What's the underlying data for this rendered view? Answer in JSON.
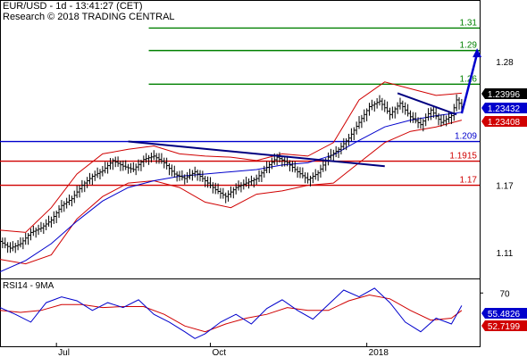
{
  "chart_data": {
    "type": "candlestick",
    "title": "EUR/USD - 1d - 13:41:27 (CET)",
    "subtitle": "Research © 2018 TRADING CENTRAL",
    "price_axis": {
      "ticks": [
        "1.28",
        "1.17",
        "1.11"
      ],
      "ylim": [
        1.087,
        1.335
      ]
    },
    "x_axis": {
      "labels": [
        "Jul",
        "Oct",
        "2018"
      ]
    },
    "horizontal_levels": [
      {
        "label": "1.31",
        "value": 1.31,
        "color": "#008000"
      },
      {
        "label": "1.29",
        "value": 1.29,
        "color": "#008000"
      },
      {
        "label": "1.26",
        "value": 1.26,
        "color": "#008000"
      },
      {
        "label": "1.209",
        "value": 1.209,
        "color": "#0000cc"
      },
      {
        "label": "1.1915",
        "value": 1.1915,
        "color": "#d00000"
      },
      {
        "label": "1.17",
        "value": 1.17,
        "color": "#d00000"
      }
    ],
    "price_tags": [
      {
        "label": "1.23996",
        "value": 1.23996,
        "bg": "#000000",
        "fg": "#ffffff"
      },
      {
        "label": "1.23432",
        "value": 1.23432,
        "bg": "#0000cc",
        "fg": "#ffffff"
      },
      {
        "label": "1.23408",
        "value": 1.23408,
        "bg": "#d00000",
        "fg": "#ffffff"
      }
    ],
    "price_path": [
      [
        0,
        1.12
      ],
      [
        4,
        1.114
      ],
      [
        8,
        1.118
      ],
      [
        12,
        1.128
      ],
      [
        16,
        1.132
      ],
      [
        20,
        1.139
      ],
      [
        24,
        1.152
      ],
      [
        28,
        1.158
      ],
      [
        32,
        1.17
      ],
      [
        36,
        1.178
      ],
      [
        40,
        1.183
      ],
      [
        44,
        1.192
      ],
      [
        48,
        1.187
      ],
      [
        52,
        1.184
      ],
      [
        56,
        1.193
      ],
      [
        60,
        1.196
      ],
      [
        64,
        1.19
      ],
      [
        68,
        1.18
      ],
      [
        72,
        1.176
      ],
      [
        76,
        1.182
      ],
      [
        80,
        1.174
      ],
      [
        84,
        1.166
      ],
      [
        88,
        1.16
      ],
      [
        92,
        1.168
      ],
      [
        96,
        1.172
      ],
      [
        100,
        1.176
      ],
      [
        104,
        1.186
      ],
      [
        108,
        1.195
      ],
      [
        112,
        1.19
      ],
      [
        116,
        1.182
      ],
      [
        120,
        1.175
      ],
      [
        124,
        1.181
      ],
      [
        128,
        1.195
      ],
      [
        132,
        1.202
      ],
      [
        136,
        1.212
      ],
      [
        140,
        1.226
      ],
      [
        144,
        1.24
      ],
      [
        148,
        1.245
      ],
      [
        152,
        1.233
      ],
      [
        156,
        1.243
      ],
      [
        160,
        1.231
      ],
      [
        164,
        1.224
      ],
      [
        168,
        1.237
      ],
      [
        172,
        1.226
      ],
      [
        176,
        1.232
      ],
      [
        178,
        1.246
      ],
      [
        180,
        1.24
      ]
    ],
    "upper_band": [
      [
        0,
        1.13
      ],
      [
        10,
        1.128
      ],
      [
        20,
        1.15
      ],
      [
        30,
        1.18
      ],
      [
        40,
        1.198
      ],
      [
        50,
        1.202
      ],
      [
        60,
        1.205
      ],
      [
        70,
        1.198
      ],
      [
        80,
        1.196
      ],
      [
        90,
        1.195
      ],
      [
        100,
        1.192
      ],
      [
        110,
        1.198
      ],
      [
        120,
        1.196
      ],
      [
        130,
        1.208
      ],
      [
        140,
        1.246
      ],
      [
        150,
        1.262
      ],
      [
        160,
        1.256
      ],
      [
        170,
        1.25
      ],
      [
        180,
        1.252
      ]
    ],
    "lower_band": [
      [
        0,
        1.104
      ],
      [
        10,
        1.1
      ],
      [
        20,
        1.108
      ],
      [
        30,
        1.14
      ],
      [
        40,
        1.16
      ],
      [
        50,
        1.172
      ],
      [
        60,
        1.174
      ],
      [
        70,
        1.168
      ],
      [
        80,
        1.155
      ],
      [
        90,
        1.15
      ],
      [
        100,
        1.162
      ],
      [
        110,
        1.165
      ],
      [
        120,
        1.17
      ],
      [
        130,
        1.172
      ],
      [
        140,
        1.19
      ],
      [
        150,
        1.208
      ],
      [
        160,
        1.218
      ],
      [
        170,
        1.222
      ],
      [
        180,
        1.228
      ]
    ],
    "moving_average": [
      [
        0,
        1.093
      ],
      [
        10,
        1.103
      ],
      [
        20,
        1.118
      ],
      [
        30,
        1.138
      ],
      [
        40,
        1.156
      ],
      [
        50,
        1.168
      ],
      [
        60,
        1.174
      ],
      [
        70,
        1.178
      ],
      [
        80,
        1.18
      ],
      [
        90,
        1.182
      ],
      [
        100,
        1.184
      ],
      [
        110,
        1.188
      ],
      [
        120,
        1.19
      ],
      [
        130,
        1.197
      ],
      [
        140,
        1.21
      ],
      [
        150,
        1.222
      ],
      [
        160,
        1.228
      ],
      [
        170,
        1.232
      ],
      [
        180,
        1.235
      ]
    ],
    "trendlines": [
      {
        "from": [
          50,
          1.209
        ],
        "to": [
          150,
          1.187
        ],
        "color": "#000080"
      },
      {
        "from": [
          155,
          1.252
        ],
        "to": [
          178,
          1.233
        ],
        "color": "#000080"
      }
    ],
    "arrow": {
      "from": [
        180,
        1.234
      ],
      "to": [
        186,
        1.292
      ],
      "color": "#0000cc"
    },
    "rsi": {
      "label": "RSI14 - 9MA",
      "ticks": [
        "70"
      ],
      "ylim": [
        15,
        85
      ],
      "tags": [
        {
          "label": "55.4826",
          "value": 55.4826,
          "bg": "#0000cc",
          "fg": "#ffffff"
        },
        {
          "label": "52.7199",
          "value": 52.7199,
          "bg": "#d00000",
          "fg": "#ffffff"
        }
      ],
      "rsi_line": [
        [
          0,
          55
        ],
        [
          6,
          48
        ],
        [
          12,
          40
        ],
        [
          18,
          60
        ],
        [
          24,
          66
        ],
        [
          30,
          62
        ],
        [
          36,
          52
        ],
        [
          42,
          60
        ],
        [
          48,
          55
        ],
        [
          54,
          63
        ],
        [
          60,
          48
        ],
        [
          66,
          40
        ],
        [
          72,
          30
        ],
        [
          76,
          23
        ],
        [
          80,
          28
        ],
        [
          86,
          40
        ],
        [
          92,
          48
        ],
        [
          98,
          38
        ],
        [
          104,
          54
        ],
        [
          110,
          63
        ],
        [
          116,
          52
        ],
        [
          122,
          43
        ],
        [
          128,
          58
        ],
        [
          134,
          73
        ],
        [
          140,
          66
        ],
        [
          146,
          75
        ],
        [
          152,
          60
        ],
        [
          158,
          40
        ],
        [
          164,
          30
        ],
        [
          170,
          44
        ],
        [
          176,
          38
        ],
        [
          180,
          57
        ]
      ],
      "ma_line": [
        [
          0,
          52
        ],
        [
          8,
          50
        ],
        [
          16,
          52
        ],
        [
          24,
          58
        ],
        [
          32,
          58
        ],
        [
          40,
          55
        ],
        [
          48,
          56
        ],
        [
          56,
          56
        ],
        [
          64,
          48
        ],
        [
          72,
          36
        ],
        [
          80,
          30
        ],
        [
          88,
          38
        ],
        [
          96,
          44
        ],
        [
          104,
          48
        ],
        [
          112,
          55
        ],
        [
          120,
          52
        ],
        [
          128,
          52
        ],
        [
          136,
          62
        ],
        [
          144,
          68
        ],
        [
          152,
          64
        ],
        [
          160,
          52
        ],
        [
          168,
          42
        ],
        [
          176,
          44
        ],
        [
          180,
          52
        ]
      ]
    }
  }
}
